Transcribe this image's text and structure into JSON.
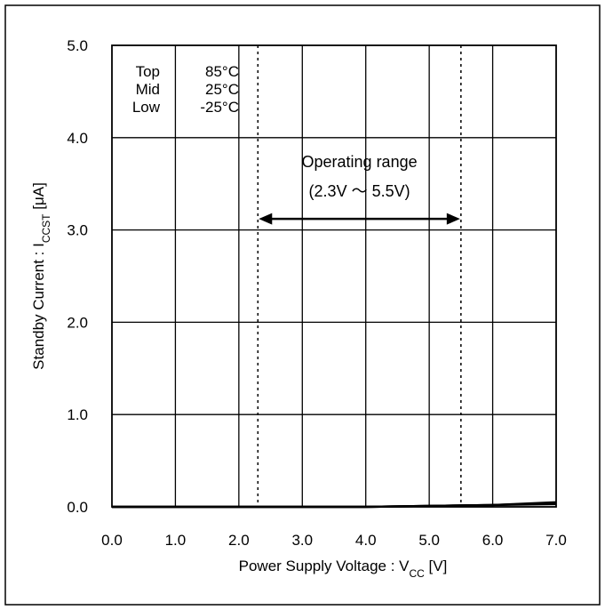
{
  "chart_data": {
    "type": "line",
    "title": "",
    "xlabel": "Power Supply Voltage : V",
    "xlabel_sub": "CC",
    "xlabel_unit": " [V]",
    "ylabel": "Standby Current : I",
    "ylabel_sub": "CCST",
    "ylabel_unit": " [μA]",
    "xlim": [
      0,
      7
    ],
    "ylim": [
      0,
      5
    ],
    "x_ticks": [
      0,
      1,
      2,
      3,
      4,
      5,
      6,
      7
    ],
    "x_tick_labels": [
      "0.0",
      "1.0",
      "2.0",
      "3.0",
      "4.0",
      "5.0",
      "6.0",
      "7.0"
    ],
    "y_ticks": [
      0,
      1,
      2,
      3,
      4,
      5
    ],
    "y_tick_labels": [
      "0.0",
      "1.0",
      "2.0",
      "3.0",
      "4.0",
      "5.0"
    ],
    "grid": true,
    "legend": {
      "placement": "top-left",
      "rows": [
        [
          "Top",
          "85°C"
        ],
        [
          "Mid",
          "25°C"
        ],
        [
          "Low",
          "-25°C"
        ]
      ]
    },
    "series": [
      {
        "name": "Top",
        "x": [
          0,
          1,
          2,
          3,
          4,
          5,
          6,
          7
        ],
        "y": [
          0,
          0,
          0,
          0,
          0,
          0.01,
          0.02,
          0.05
        ]
      },
      {
        "name": "Mid",
        "x": [
          0,
          1,
          2,
          3,
          4,
          5,
          6,
          7
        ],
        "y": [
          0,
          0,
          0,
          0,
          0,
          0.01,
          0.02,
          0.04
        ]
      },
      {
        "name": "Low",
        "x": [
          0,
          1,
          2,
          3,
          4,
          5,
          6,
          7
        ],
        "y": [
          0,
          0,
          0,
          0,
          0,
          0.01,
          0.02,
          0.03
        ]
      }
    ],
    "operating_range": {
      "x_min": 2.3,
      "x_max": 5.5,
      "label_line1": "Operating range",
      "label_line2": "(2.3V ～ 5.5V)",
      "arrow_y": 3.12,
      "label_y_line1": 3.68,
      "label_y_line2": 3.36
    }
  }
}
